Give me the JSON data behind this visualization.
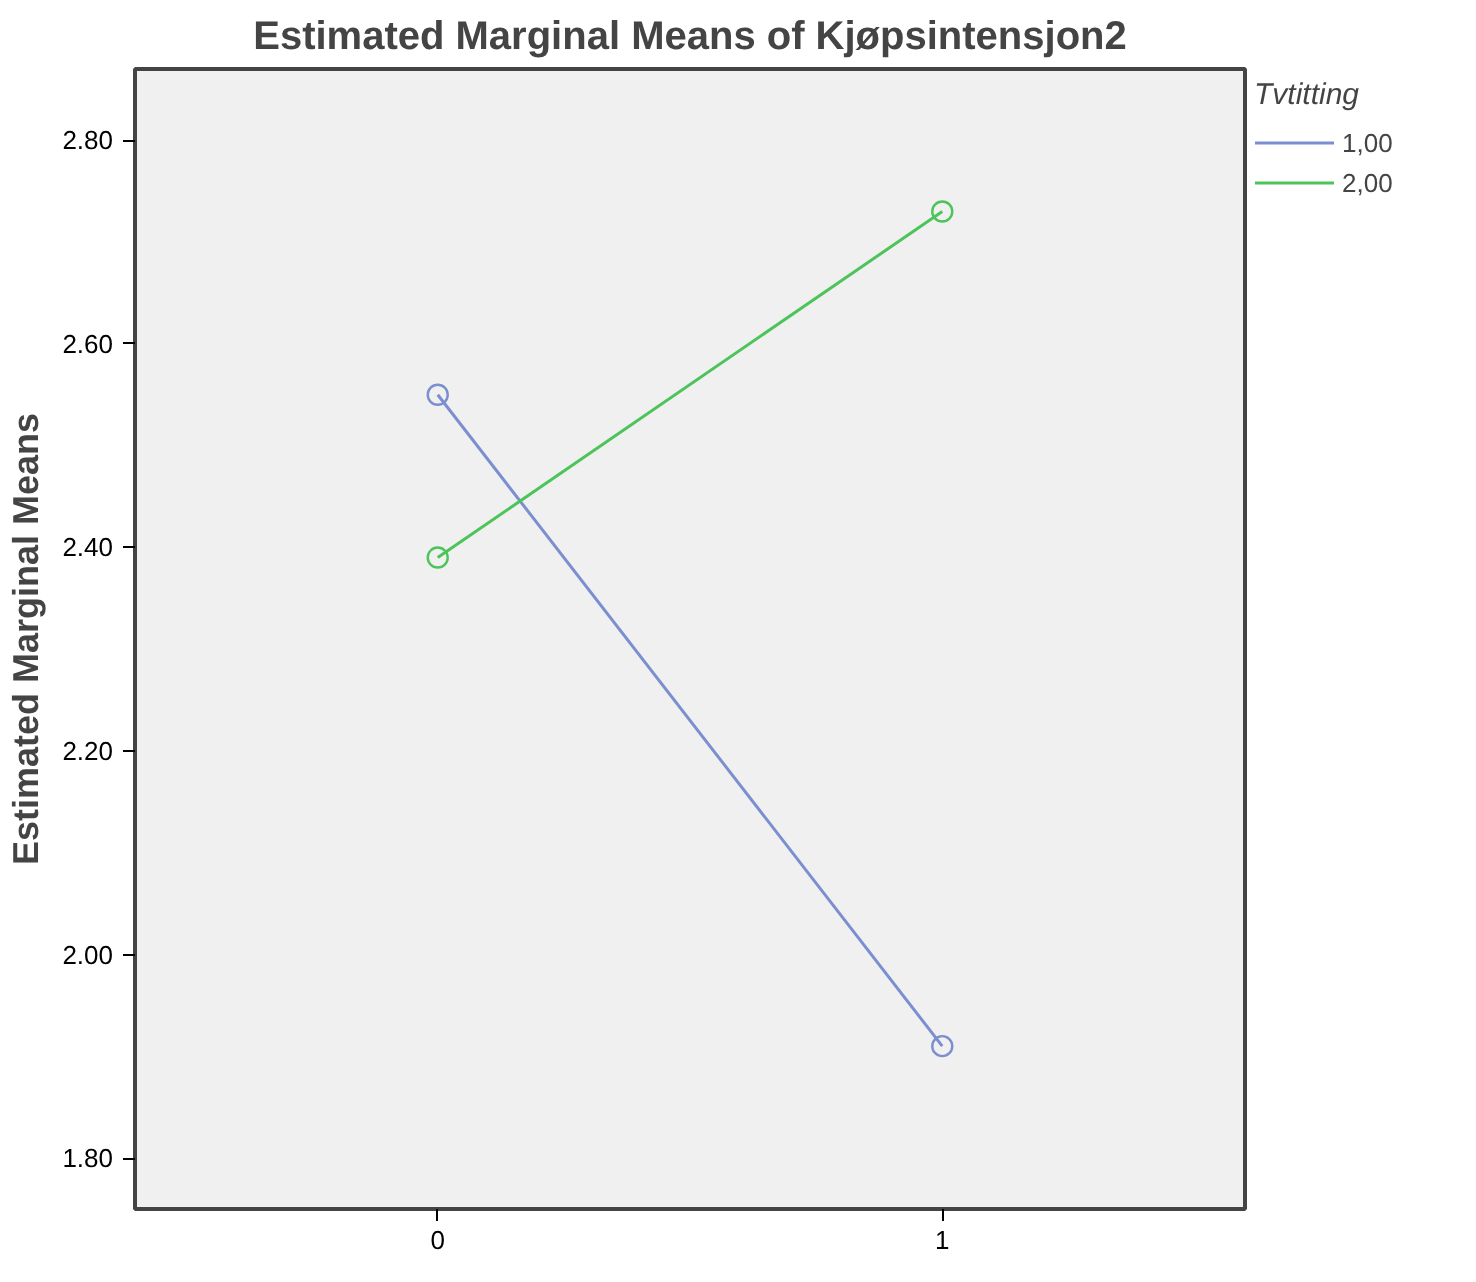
{
  "chart_data": {
    "type": "line",
    "title": "Estimated Marginal Means of Kjøpsintensjon2",
    "ylabel": "Estimated Marginal Means",
    "legend_title": "Tvtitting",
    "x": [
      0,
      1
    ],
    "xlim": [
      -0.6,
      1.6
    ],
    "xticks": [
      0,
      1
    ],
    "ylim": [
      1.75,
      2.87
    ],
    "yticks": [
      {
        "value": 1.8,
        "label": "1.80"
      },
      {
        "value": 2.0,
        "label": "2.00"
      },
      {
        "value": 2.2,
        "label": "2.20"
      },
      {
        "value": 2.4,
        "label": "2.40"
      },
      {
        "value": 2.6,
        "label": "2.60"
      },
      {
        "value": 2.8,
        "label": "2.80"
      }
    ],
    "series": [
      {
        "name": "1,00",
        "color": "#7b8fd0",
        "values": [
          2.55,
          1.91
        ]
      },
      {
        "name": "2,00",
        "color": "#4cc45a",
        "values": [
          2.39,
          2.73
        ]
      }
    ],
    "marker": "circle",
    "grid": false,
    "legend": "right"
  }
}
